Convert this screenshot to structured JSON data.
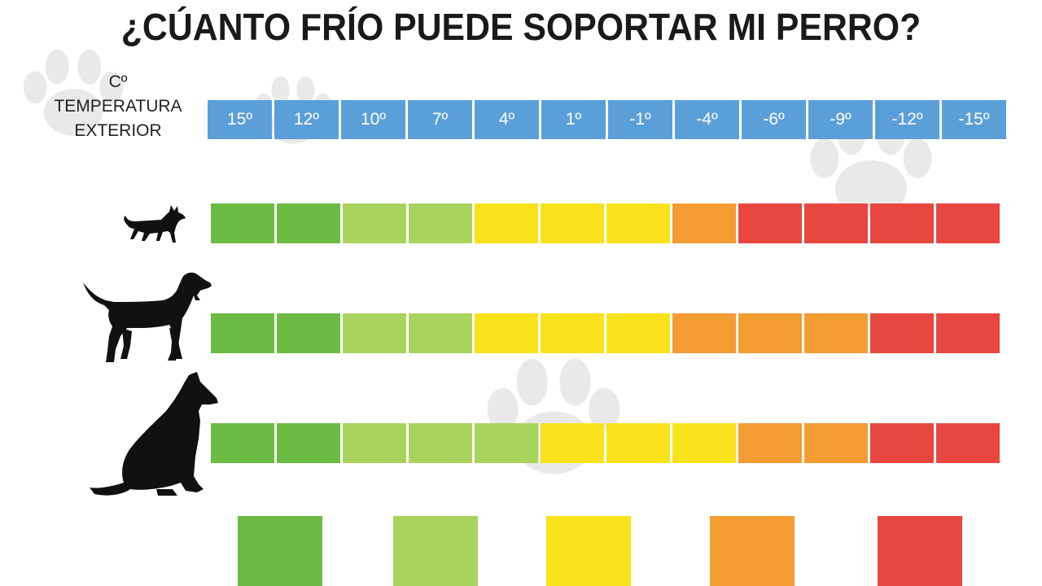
{
  "title": "¿CÚANTO FRÍO PUEDE SOPORTAR MI PERRO?",
  "temperature_label": {
    "unit": "Cº",
    "line1": "TEMPERATURA",
    "line2": "EXTERIOR"
  },
  "colors": {
    "temp_header": "#5b9fd9",
    "dark_green": "#6cbb45",
    "light_green": "#a8d35c",
    "yellow": "#f7e21b",
    "orange": "#f39c32",
    "red": "#e8473f",
    "dog": "#111111",
    "paw": "#e9e9e9"
  },
  "icons": [
    "small-dog-icon",
    "medium-dog-icon",
    "large-dog-icon"
  ],
  "chart_data": {
    "type": "heatmap",
    "title": "¿CÚANTO FRÍO PUEDE SOPORTAR MI PERRO?",
    "x_label": "Cº TEMPERATURA EXTERIOR",
    "temperatures": [
      "15º",
      "12º",
      "10º",
      "7º",
      "4º",
      "1º",
      "-1º",
      "-4º",
      "-6º",
      "-9º",
      "-12º",
      "-15º"
    ],
    "temperature_values": [
      15,
      12,
      10,
      7,
      4,
      1,
      -1,
      -4,
      -6,
      -9,
      -12,
      -15
    ],
    "rows": [
      {
        "icon": "small-dog-icon",
        "levels": [
          "dark_green",
          "dark_green",
          "light_green",
          "light_green",
          "yellow",
          "yellow",
          "yellow",
          "orange",
          "red",
          "red",
          "red",
          "red"
        ]
      },
      {
        "icon": "medium-dog-icon",
        "levels": [
          "dark_green",
          "dark_green",
          "light_green",
          "light_green",
          "yellow",
          "yellow",
          "yellow",
          "orange",
          "orange",
          "orange",
          "red",
          "red"
        ]
      },
      {
        "icon": "large-dog-icon",
        "levels": [
          "dark_green",
          "dark_green",
          "light_green",
          "light_green",
          "light_green",
          "yellow",
          "yellow",
          "yellow",
          "orange",
          "orange",
          "red",
          "red"
        ]
      }
    ],
    "legend": [
      "dark_green",
      "light_green",
      "yellow",
      "orange",
      "red"
    ]
  }
}
